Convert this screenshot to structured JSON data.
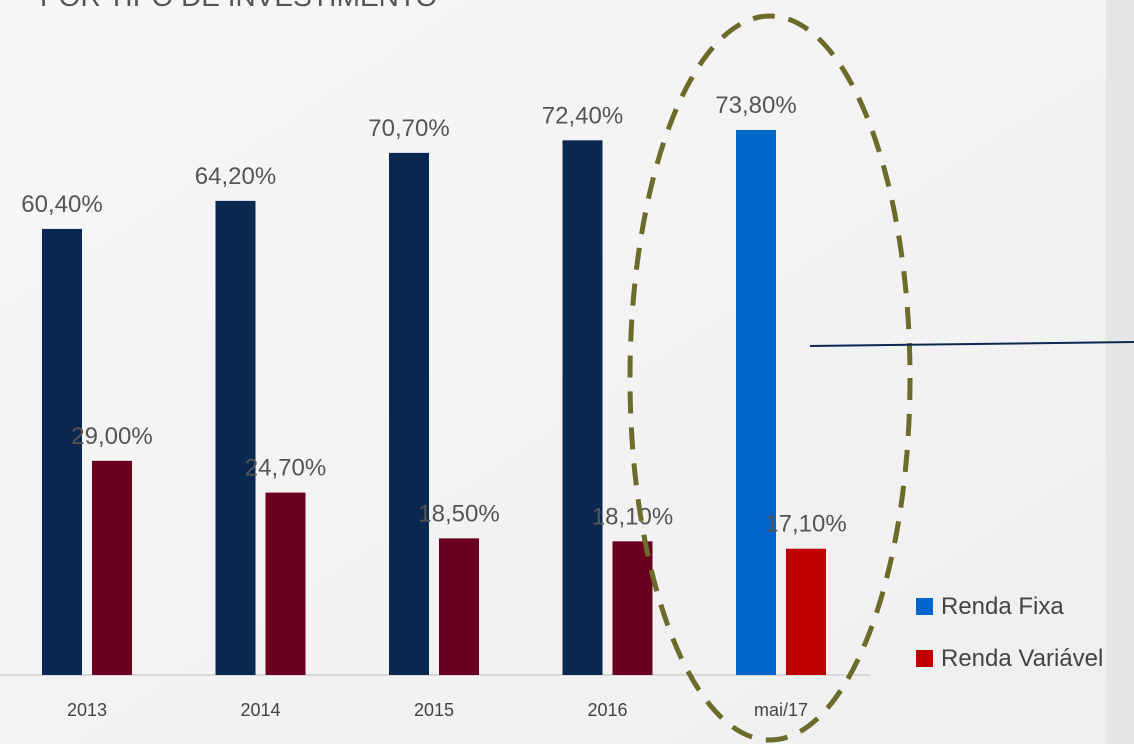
{
  "chart_data": {
    "type": "bar",
    "title": "POR TIPO DE INVESTIMENTO",
    "categories": [
      "2013",
      "2014",
      "2015",
      "2016",
      "mai/17"
    ],
    "series": [
      {
        "name": "Renda Fixa",
        "color": "#0066cc",
        "point_colors": [
          "#0b2850",
          "#0b2850",
          "#0b2850",
          "#0b2850",
          "#0066cc"
        ],
        "values": [
          60.4,
          64.2,
          70.7,
          72.4,
          73.8
        ],
        "value_labels": [
          "60,40%",
          "64,20%",
          "70,70%",
          "72,40%",
          "73,80%"
        ]
      },
      {
        "name": "Renda Variável",
        "color": "#c00000",
        "point_colors": [
          "#6b001e",
          "#6b001e",
          "#6b001e",
          "#6b001e",
          "#c00000"
        ],
        "values": [
          29.0,
          24.7,
          18.5,
          18.1,
          17.1
        ],
        "value_labels": [
          "29,00%",
          "24,70%",
          "18,50%",
          "18,10%",
          "17,10%"
        ]
      }
    ],
    "ylim": [
      0,
      100
    ],
    "legend": "right"
  }
}
